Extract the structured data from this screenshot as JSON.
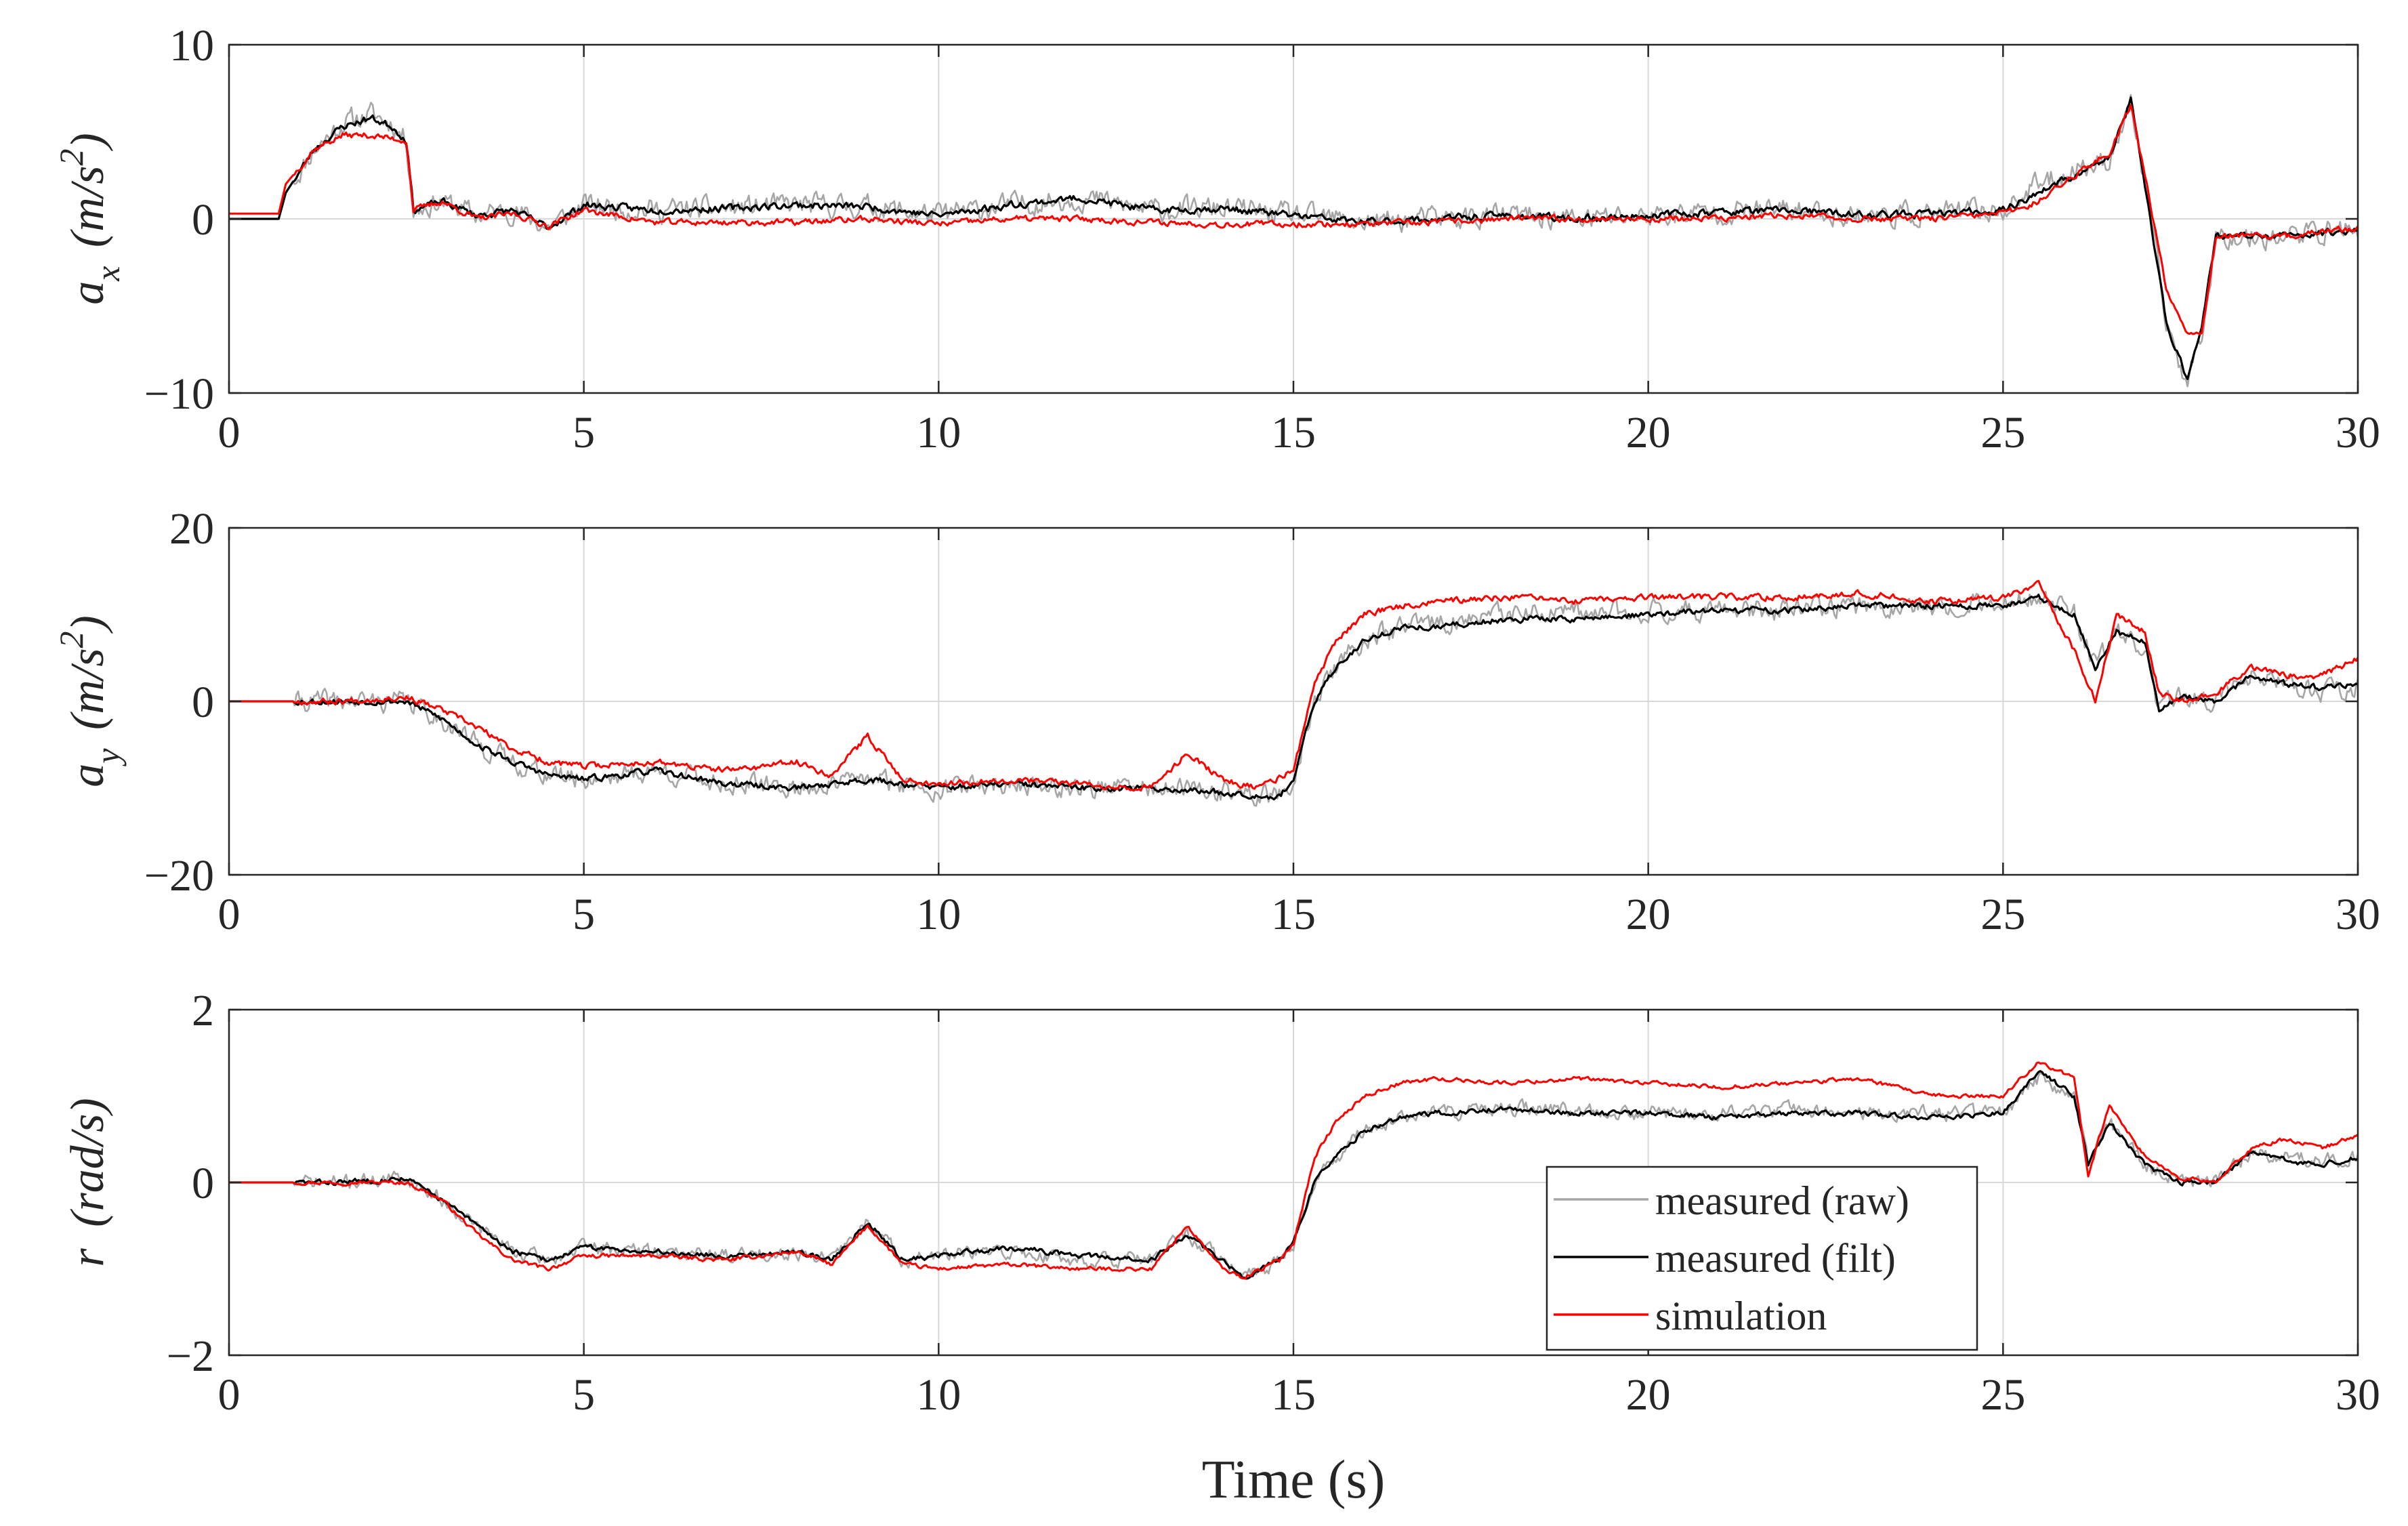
{
  "figure": {
    "xlabel": "Time (s)",
    "legend": [
      "measured (raw)",
      "measured (filt)",
      "simulation"
    ],
    "colors": {
      "raw": "#a6a6a6",
      "filt": "#000000",
      "sim": "#ff0000",
      "grid": "#d9d9d9",
      "axis": "#262626"
    }
  },
  "chart_data": [
    {
      "type": "line",
      "ylabel_main": "a",
      "ylabel_sub": "x",
      "ylabel_unit": "(m/s",
      "ylabel_sup": "2",
      "ylabel_close": ")",
      "xlim": [
        0,
        30
      ],
      "ylim": [
        -10,
        10
      ],
      "xticks": [
        0,
        5,
        10,
        15,
        20,
        25,
        30
      ],
      "yticks": [
        -10,
        0,
        10
      ],
      "ytick_labels": [
        "−10",
        "0",
        "10"
      ],
      "legend": null,
      "series": [
        {
          "name": "measured (raw)",
          "color": "#a6a6a6",
          "noise": 1.1,
          "seed": 11,
          "x": [
            0,
            0.7,
            0.8,
            1.2,
            1.6,
            2.0,
            2.3,
            2.5,
            2.6,
            3.0,
            3.5,
            4.0,
            4.5,
            5.0,
            6.0,
            7.0,
            8.0,
            9.0,
            10.0,
            11.0,
            12.0,
            13.0,
            14.0,
            15.0,
            16.0,
            17.0,
            18.0,
            19.0,
            20.0,
            21.0,
            22.0,
            23.0,
            24.0,
            25.0,
            25.5,
            26.0,
            26.5,
            26.8,
            27.0,
            27.3,
            27.6,
            27.8,
            28.0,
            29.0,
            30.0
          ],
          "y": [
            0,
            0,
            1.5,
            4.0,
            5.5,
            6.0,
            5.5,
            4.5,
            0.5,
            1.0,
            0.2,
            0.5,
            -0.5,
            0.8,
            0.5,
            0.6,
            0.8,
            0.7,
            0.2,
            0.8,
            1.2,
            0.5,
            0.6,
            0.2,
            -0.2,
            0.0,
            0.2,
            0.0,
            0.2,
            0.4,
            0.5,
            0.2,
            0.3,
            0.5,
            2.0,
            2.8,
            3.5,
            6.5,
            2.0,
            -6.0,
            -9.5,
            -6.5,
            -1.0,
            -1.0,
            -0.5
          ]
        },
        {
          "name": "measured (filt)",
          "color": "#000000",
          "noise": 0.35,
          "seed": 23,
          "x": [
            0,
            0.7,
            0.8,
            1.2,
            1.6,
            2.0,
            2.3,
            2.5,
            2.6,
            3.0,
            3.5,
            4.0,
            4.5,
            5.0,
            6.0,
            7.0,
            8.0,
            9.0,
            10.0,
            11.0,
            12.0,
            13.0,
            14.0,
            15.0,
            16.0,
            17.0,
            18.0,
            19.0,
            20.0,
            21.0,
            22.0,
            23.0,
            24.0,
            25.0,
            25.5,
            26.0,
            26.5,
            26.8,
            27.0,
            27.3,
            27.6,
            27.8,
            28.0,
            29.0,
            30.0
          ],
          "y": [
            0,
            0,
            1.5,
            4.0,
            5.3,
            5.8,
            5.3,
            4.5,
            0.5,
            1.0,
            0.2,
            0.5,
            -0.5,
            0.8,
            0.5,
            0.6,
            0.8,
            0.7,
            0.2,
            0.8,
            1.2,
            0.5,
            0.6,
            0.2,
            -0.2,
            0.0,
            0.2,
            0.0,
            0.2,
            0.4,
            0.5,
            0.2,
            0.3,
            0.5,
            1.5,
            2.5,
            3.5,
            6.8,
            2.0,
            -6.0,
            -9.2,
            -6.0,
            -1.0,
            -1.0,
            -0.6
          ]
        },
        {
          "name": "simulation",
          "color": "#ff0000",
          "noise": 0.3,
          "seed": 37,
          "x": [
            0,
            0.7,
            0.8,
            1.2,
            1.6,
            2.0,
            2.3,
            2.5,
            2.6,
            3.0,
            3.5,
            4.0,
            4.5,
            5.0,
            6.0,
            7.0,
            8.0,
            9.0,
            10.0,
            11.0,
            12.0,
            13.0,
            14.0,
            15.0,
            16.0,
            17.0,
            18.0,
            19.0,
            20.0,
            21.0,
            22.0,
            23.0,
            24.0,
            25.0,
            25.5,
            26.0,
            26.5,
            26.8,
            27.0,
            27.3,
            27.6,
            27.8,
            28.0,
            29.0,
            30.0
          ],
          "y": [
            0.3,
            0.3,
            2.0,
            4.0,
            4.8,
            4.8,
            4.6,
            4.5,
            0.5,
            1.0,
            0.0,
            0.3,
            -0.4,
            0.5,
            -0.2,
            -0.2,
            -0.2,
            0.0,
            -0.3,
            0.0,
            0.0,
            -0.2,
            -0.3,
            -0.3,
            -0.3,
            -0.2,
            0.0,
            0.0,
            0.0,
            0.0,
            0.2,
            0.0,
            0.0,
            0.3,
            1.0,
            2.5,
            3.8,
            6.6,
            2.5,
            -4.0,
            -6.5,
            -6.5,
            -1.0,
            -1.0,
            -0.5
          ]
        }
      ]
    },
    {
      "type": "line",
      "ylabel_main": "a",
      "ylabel_sub": "y",
      "ylabel_unit": "(m/s",
      "ylabel_sup": "2",
      "ylabel_close": ")",
      "xlim": [
        0,
        30
      ],
      "ylim": [
        -20,
        20
      ],
      "xticks": [
        0,
        5,
        10,
        15,
        20,
        25,
        30
      ],
      "yticks": [
        -20,
        0,
        20
      ],
      "ytick_labels": [
        "−20",
        "0",
        "20"
      ],
      "legend": null,
      "series": [
        {
          "name": "measured (raw)",
          "color": "#a6a6a6",
          "noise": 2.0,
          "seed": 41,
          "x": [
            0,
            1.5,
            2.5,
            3.0,
            3.5,
            4.0,
            4.5,
            5.0,
            6.0,
            7.0,
            8.0,
            9.0,
            10.0,
            11.0,
            12.0,
            13.0,
            14.0,
            14.8,
            15.0,
            15.3,
            15.6,
            16.0,
            16.5,
            17.0,
            18.0,
            19.0,
            20.0,
            21.0,
            22.0,
            23.0,
            24.0,
            25.0,
            25.5,
            26.0,
            26.3,
            26.6,
            27.0,
            27.2,
            27.5,
            28.0,
            28.5,
            29.0,
            29.5,
            30.0
          ],
          "y": [
            0,
            0,
            0,
            -2,
            -5,
            -7,
            -8.5,
            -9,
            -8,
            -9.5,
            -10,
            -9,
            -10,
            -9.5,
            -10,
            -10,
            -10.5,
            -11,
            -9,
            0,
            4,
            7,
            8.5,
            9,
            10,
            10,
            10.5,
            10.5,
            10.5,
            11,
            11,
            11.5,
            12,
            10,
            4,
            8,
            6,
            -1,
            0.5,
            0,
            3,
            2,
            1,
            1.5
          ]
        },
        {
          "name": "measured (filt)",
          "color": "#000000",
          "noise": 0.6,
          "seed": 53,
          "x": [
            0,
            1.5,
            2.5,
            3.0,
            3.5,
            4.0,
            4.5,
            5.0,
            6.0,
            7.0,
            8.0,
            9.0,
            10.0,
            11.0,
            12.0,
            13.0,
            14.0,
            14.8,
            15.0,
            15.3,
            15.6,
            16.0,
            16.5,
            17.0,
            18.0,
            19.0,
            20.0,
            21.0,
            22.0,
            23.0,
            24.0,
            25.0,
            25.5,
            26.0,
            26.3,
            26.6,
            27.0,
            27.2,
            27.5,
            28.0,
            28.5,
            29.0,
            29.5,
            30.0
          ],
          "y": [
            0,
            0,
            0,
            -2,
            -5,
            -7,
            -8.5,
            -9,
            -8,
            -9.5,
            -10,
            -9,
            -10,
            -9.5,
            -10,
            -10,
            -10.5,
            -11,
            -9,
            0,
            4,
            7,
            8.5,
            8.5,
            9.5,
            9.5,
            10,
            10.5,
            10.5,
            11,
            11,
            11,
            12,
            10,
            4,
            8,
            7,
            -1,
            0.5,
            0,
            3,
            2,
            1.5,
            2
          ]
        },
        {
          "name": "simulation",
          "color": "#ff0000",
          "noise": 0.6,
          "seed": 67,
          "x": [
            0,
            1.5,
            2.5,
            3.0,
            3.5,
            4.0,
            4.5,
            5.0,
            6.0,
            7.0,
            7.5,
            8.0,
            8.5,
            9.0,
            9.5,
            10.0,
            11.0,
            12.0,
            13.0,
            13.5,
            14.0,
            14.5,
            15.0,
            15.3,
            15.6,
            16.0,
            16.5,
            17.0,
            18.0,
            19.0,
            20.0,
            21.0,
            22.0,
            23.0,
            24.0,
            25.0,
            25.5,
            26.0,
            26.3,
            26.6,
            27.0,
            27.2,
            27.5,
            28.0,
            28.5,
            29.0,
            29.5,
            30.0
          ],
          "y": [
            0,
            0,
            0.5,
            -1,
            -3,
            -5.5,
            -7,
            -7.5,
            -7,
            -8,
            -7.5,
            -7,
            -8.5,
            -4,
            -9,
            -9.5,
            -9,
            -9.5,
            -10,
            -6,
            -9,
            -10,
            -8,
            2,
            7,
            10,
            11,
            11.5,
            12,
            11.5,
            12,
            12,
            12,
            12.5,
            11.5,
            12,
            13.5,
            6,
            0,
            10,
            8,
            1,
            0,
            1,
            4,
            3,
            3,
            5
          ]
        }
      ]
    },
    {
      "type": "line",
      "ylabel_main": "r",
      "ylabel_sub": "",
      "ylabel_unit": "(rad/s)",
      "ylabel_sup": "",
      "ylabel_close": "",
      "xlim": [
        0,
        30
      ],
      "ylim": [
        -2,
        2
      ],
      "xticks": [
        0,
        5,
        10,
        15,
        20,
        25,
        30
      ],
      "yticks": [
        -2,
        0,
        2
      ],
      "ytick_labels": [
        "−2",
        "0",
        "2"
      ],
      "legend": "bottom-right",
      "series": [
        {
          "name": "measured (raw)",
          "color": "#a6a6a6",
          "noise": 0.14,
          "seed": 71,
          "x": [
            0,
            1.5,
            2.5,
            3.0,
            3.5,
            4.0,
            4.5,
            5.0,
            6.0,
            7.0,
            8.0,
            8.5,
            9.0,
            9.5,
            10.0,
            11.0,
            12.0,
            13.0,
            13.5,
            14.0,
            14.3,
            14.8,
            15.0,
            15.3,
            15.6,
            16.0,
            16.5,
            17.0,
            18.0,
            19.0,
            20.0,
            21.0,
            22.0,
            23.0,
            24.0,
            25.0,
            25.5,
            26.0,
            26.2,
            26.5,
            27.0,
            27.5,
            28.0,
            28.5,
            29.0,
            29.5,
            30.0
          ],
          "y": [
            0,
            0,
            0.05,
            -0.2,
            -0.5,
            -0.8,
            -0.9,
            -0.75,
            -0.8,
            -0.85,
            -0.8,
            -0.9,
            -0.45,
            -0.9,
            -0.85,
            -0.8,
            -0.9,
            -0.9,
            -0.6,
            -0.9,
            -1.1,
            -0.9,
            -0.7,
            0,
            0.3,
            0.6,
            0.75,
            0.8,
            0.85,
            0.85,
            0.8,
            0.8,
            0.85,
            0.8,
            0.8,
            0.8,
            1.2,
            1.0,
            0.2,
            0.7,
            0.2,
            0.0,
            0.0,
            0.35,
            0.3,
            0.25,
            0.3
          ]
        },
        {
          "name": "measured (filt)",
          "color": "#000000",
          "noise": 0.05,
          "seed": 83,
          "x": [
            0,
            1.5,
            2.5,
            3.0,
            3.5,
            4.0,
            4.5,
            5.0,
            6.0,
            7.0,
            8.0,
            8.5,
            9.0,
            9.5,
            10.0,
            11.0,
            12.0,
            13.0,
            13.5,
            14.0,
            14.3,
            14.8,
            15.0,
            15.3,
            15.6,
            16.0,
            16.5,
            17.0,
            18.0,
            19.0,
            20.0,
            21.0,
            22.0,
            23.0,
            24.0,
            25.0,
            25.5,
            26.0,
            26.2,
            26.5,
            27.0,
            27.5,
            28.0,
            28.5,
            29.0,
            29.5,
            30.0
          ],
          "y": [
            0,
            0,
            0.05,
            -0.2,
            -0.5,
            -0.8,
            -0.9,
            -0.75,
            -0.8,
            -0.85,
            -0.8,
            -0.9,
            -0.45,
            -0.9,
            -0.85,
            -0.75,
            -0.85,
            -0.9,
            -0.6,
            -0.9,
            -1.1,
            -0.9,
            -0.7,
            0,
            0.3,
            0.6,
            0.75,
            0.8,
            0.85,
            0.8,
            0.8,
            0.75,
            0.8,
            0.8,
            0.75,
            0.8,
            1.3,
            1.0,
            0.2,
            0.7,
            0.2,
            0.0,
            0.0,
            0.35,
            0.25,
            0.2,
            0.3
          ]
        },
        {
          "name": "simulation",
          "color": "#ff0000",
          "noise": 0.04,
          "seed": 97,
          "x": [
            0,
            1.5,
            2.5,
            3.0,
            3.5,
            4.0,
            4.5,
            5.0,
            6.0,
            7.0,
            8.0,
            8.5,
            9.0,
            9.5,
            10.0,
            11.0,
            12.0,
            13.0,
            13.5,
            14.0,
            14.3,
            14.8,
            15.0,
            15.3,
            15.6,
            16.0,
            16.5,
            17.0,
            18.0,
            19.0,
            20.0,
            21.0,
            22.0,
            23.0,
            24.0,
            25.0,
            25.5,
            26.0,
            26.2,
            26.5,
            27.0,
            27.5,
            28.0,
            28.5,
            29.0,
            29.5,
            30.0
          ],
          "y": [
            0,
            0,
            0,
            -0.2,
            -0.6,
            -0.9,
            -1.0,
            -0.85,
            -0.85,
            -0.9,
            -0.8,
            -0.95,
            -0.5,
            -0.95,
            -1.0,
            -0.95,
            -1.0,
            -1.0,
            -0.5,
            -1.0,
            -1.1,
            -0.9,
            -0.7,
            0.3,
            0.7,
            1.0,
            1.15,
            1.2,
            1.15,
            1.2,
            1.15,
            1.1,
            1.15,
            1.2,
            1.0,
            1.0,
            1.4,
            1.2,
            0.1,
            0.9,
            0.3,
            0.05,
            0.0,
            0.4,
            0.5,
            0.4,
            0.55
          ]
        }
      ]
    }
  ]
}
